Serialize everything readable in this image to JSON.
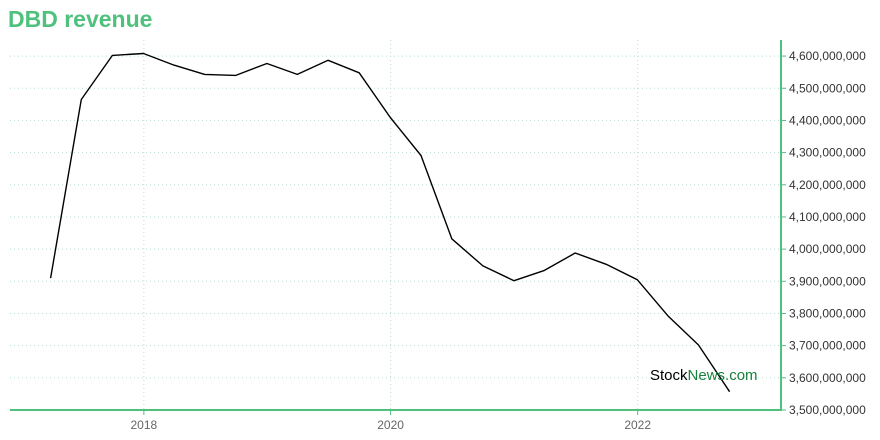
{
  "title": "DBD revenue",
  "watermark": {
    "part1": "Stock",
    "part2": "News.com"
  },
  "colors": {
    "accent": "#4fc17d",
    "line": "#000000",
    "grid": "#b9ddd0",
    "watermark_dark": "#000000",
    "watermark_green": "#1a7f3c"
  },
  "chart_data": {
    "type": "line",
    "title": "DBD revenue",
    "xlabel": "",
    "ylabel": "",
    "xlim": [
      "2016-12",
      "2023-03"
    ],
    "ylim": [
      3500000000,
      4650000000
    ],
    "x_ticks": [
      "2018",
      "2020",
      "2022"
    ],
    "y_ticks": [
      "3,500,000,000",
      "3,600,000,000",
      "3,700,000,000",
      "3,800,000,000",
      "3,900,000,000",
      "4,000,000,000",
      "4,100,000,000",
      "4,200,000,000",
      "4,300,000,000",
      "4,400,000,000",
      "4,500,000,000",
      "4,600,000,000"
    ],
    "grid": true,
    "y_axis_position": "right",
    "series": [
      {
        "x": [
          "2017-03-31",
          "2017-06-30",
          "2017-09-30",
          "2017-12-31",
          "2018-03-31",
          "2018-06-30",
          "2018-09-30",
          "2018-12-31",
          "2019-03-31",
          "2019-06-30",
          "2019-09-30",
          "2019-12-31",
          "2020-03-31",
          "2020-06-30",
          "2020-09-30",
          "2020-12-31",
          "2021-03-31",
          "2021-06-30",
          "2021-09-30",
          "2021-12-31",
          "2022-03-31",
          "2022-06-30",
          "2022-09-30"
        ],
        "y": [
          3910000000,
          4465000000,
          4602000000,
          4608000000,
          4572000000,
          4543000000,
          4540000000,
          4577000000,
          4543000000,
          4587000000,
          4548000000,
          4409000000,
          4291000000,
          4032000000,
          3948000000,
          3902000000,
          3934000000,
          3988000000,
          3953000000,
          3905000000,
          3793000000,
          3702000000,
          3557000000
        ]
      }
    ]
  }
}
